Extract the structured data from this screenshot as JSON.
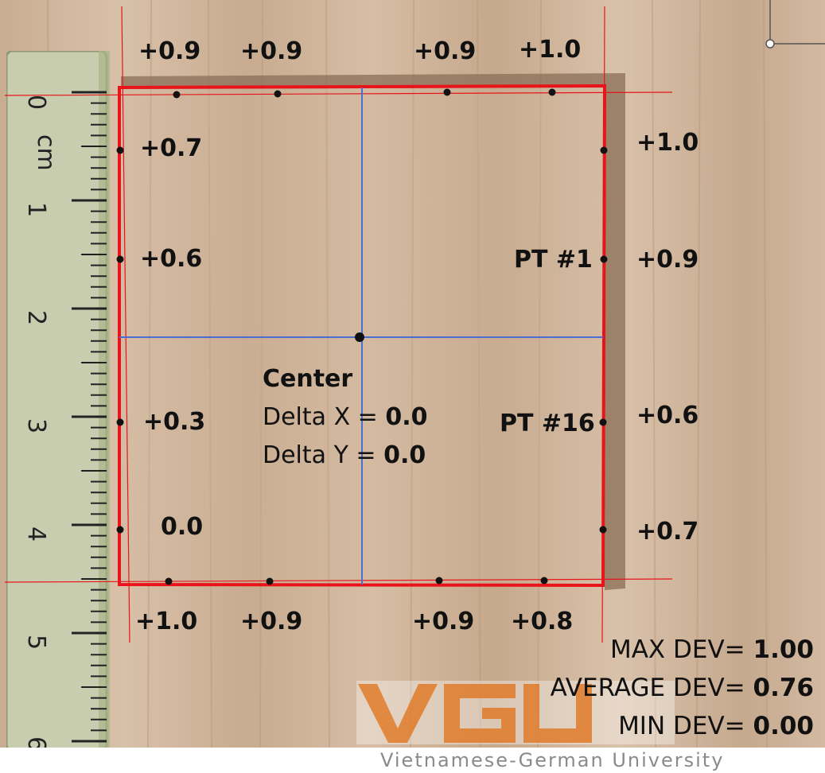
{
  "top_labels": [
    "+0.9",
    "+0.9",
    "+0.9",
    "+1.0"
  ],
  "bottom_labels": [
    "+1.0",
    "+0.9",
    "+0.9",
    "+0.8"
  ],
  "left_labels": [
    "+0.7",
    "+0.6",
    "+0.3",
    "0.0"
  ],
  "right_labels": [
    "+1.0",
    "+0.9",
    "+0.6",
    "+0.7"
  ],
  "points": {
    "pt1": "PT #1",
    "pt16": "PT #16"
  },
  "center": {
    "title": "Center",
    "delta_x_label": "Delta X =",
    "delta_x_value": "0.0",
    "delta_y_label": "Delta Y =",
    "delta_y_value": "0.0"
  },
  "stats": {
    "max_label": "MAX DEV=",
    "max_value": "1.00",
    "avg_label": "AVERAGE DEV=",
    "avg_value": "0.76",
    "min_label": "MIN DEV=",
    "min_value": "0.00"
  },
  "ruler": {
    "unit": "cm",
    "numbers": [
      "0",
      "1",
      "2",
      "3",
      "4",
      "5",
      "6"
    ]
  },
  "logo": {
    "mark": "VGU",
    "caption": "Vietnamese-German University"
  },
  "colors": {
    "measured_outline": "#e8141a",
    "axes": "#4a6fd0",
    "logo_orange": "#e07b2a"
  }
}
